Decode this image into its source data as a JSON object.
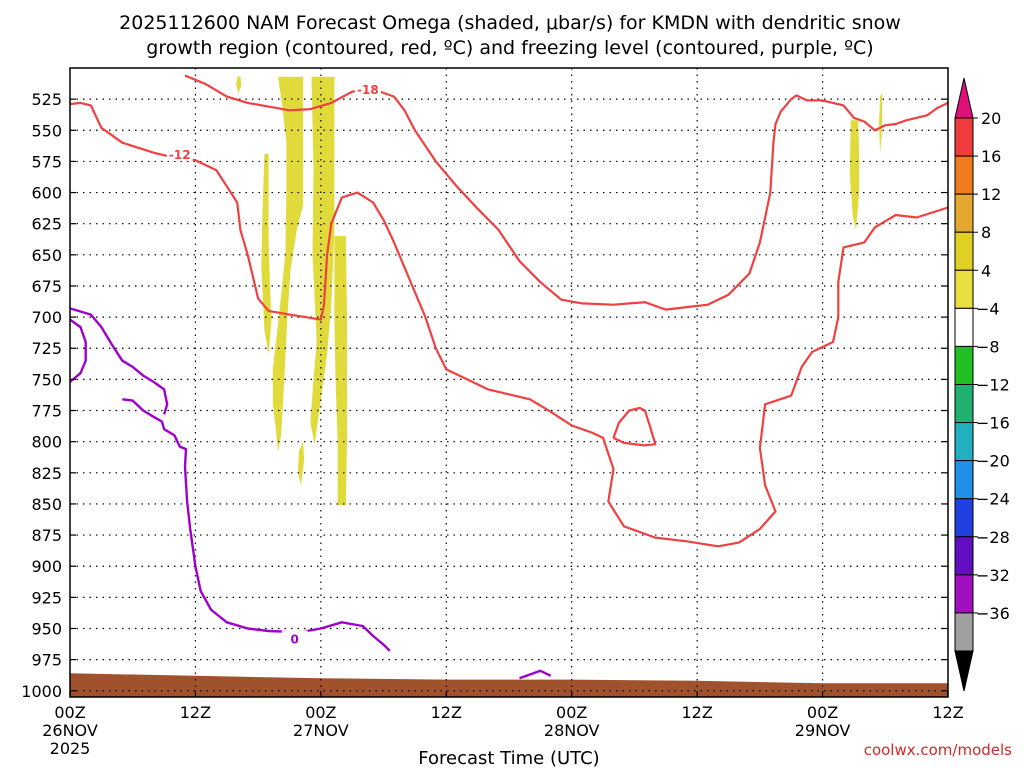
{
  "chart_data": {
    "type": "heatmap",
    "title_lines": [
      "2025112600 NAM Forecast Omega (shaded, μbar/s) for KMDN with dendritic snow",
      "growth region (contoured, red, ºC) and freezing level (contoured, purple, ºC)"
    ],
    "xlabel": "Forecast Time (UTC)",
    "credit": "coolwx.com/models",
    "x_range_hours": [
      0,
      84
    ],
    "x_ticks": [
      {
        "h": 0,
        "lines": [
          "00Z",
          "26NOV",
          "2025"
        ]
      },
      {
        "h": 12,
        "lines": [
          "12Z"
        ]
      },
      {
        "h": 24,
        "lines": [
          "00Z",
          "27NOV"
        ]
      },
      {
        "h": 36,
        "lines": [
          "12Z"
        ]
      },
      {
        "h": 48,
        "lines": [
          "00Z",
          "28NOV"
        ]
      },
      {
        "h": 60,
        "lines": [
          "12Z"
        ]
      },
      {
        "h": 72,
        "lines": [
          "00Z",
          "29NOV"
        ]
      },
      {
        "h": 84,
        "lines": [
          "12Z"
        ]
      }
    ],
    "y_range_hpa": [
      1005,
      500
    ],
    "y_ticks": [
      525,
      550,
      575,
      600,
      625,
      650,
      675,
      700,
      725,
      750,
      775,
      800,
      825,
      850,
      875,
      900,
      925,
      950,
      975,
      1000
    ],
    "colorbar": {
      "labels": [
        "20",
        "16",
        "12",
        "8",
        "4",
        "-4",
        "-8",
        "-12",
        "-16",
        "-20",
        "-24",
        "-28",
        "-32",
        "-36"
      ],
      "colors": [
        "#f03c3c",
        "#f07a1e",
        "#e5a82e",
        "#e0d024",
        "#e8e040",
        "#ffffff",
        "#22c022",
        "#20b070",
        "#20b0c0",
        "#2090e8",
        "#2040e0",
        "#6010c0",
        "#a010c0",
        "#a0a0a0"
      ],
      "top_color": "#e0107a",
      "bottom_color": "#000000"
    },
    "shading_color": "#e0da3a",
    "ground_color": "#a0522d",
    "omega_areas": [
      {
        "name": "omega-area-a",
        "pts": [
          [
            16.0,
            507
          ],
          [
            16.3,
            507
          ],
          [
            16.4,
            514
          ],
          [
            16.1,
            520
          ],
          [
            15.9,
            513
          ]
        ]
      },
      {
        "name": "omega-area-b",
        "pts": [
          [
            19.9,
            507
          ],
          [
            22.3,
            507
          ],
          [
            22.3,
            610
          ],
          [
            21.7,
            630
          ],
          [
            21.1,
            662
          ],
          [
            20.8,
            700
          ],
          [
            20.5,
            750
          ],
          [
            20.2,
            795
          ],
          [
            19.9,
            808
          ],
          [
            19.7,
            790
          ],
          [
            19.4,
            770
          ],
          [
            19.4,
            742
          ],
          [
            20.1,
            690
          ],
          [
            20.6,
            650
          ],
          [
            20.7,
            600
          ],
          [
            20.7,
            560
          ],
          [
            20.3,
            530
          ]
        ]
      },
      {
        "name": "omega-area-c",
        "pts": [
          [
            18.6,
            569
          ],
          [
            19.0,
            569
          ],
          [
            19.0,
            640
          ],
          [
            19.2,
            690
          ],
          [
            19.3,
            700
          ],
          [
            19.0,
            730
          ],
          [
            18.6,
            710
          ],
          [
            18.3,
            660
          ],
          [
            18.4,
            620
          ]
        ]
      },
      {
        "name": "omega-area-d",
        "pts": [
          [
            23.1,
            507
          ],
          [
            25.3,
            507
          ],
          [
            25.3,
            630
          ],
          [
            25.0,
            690
          ],
          [
            24.6,
            730
          ],
          [
            24.1,
            760
          ],
          [
            23.6,
            790
          ],
          [
            23.4,
            802
          ],
          [
            23.0,
            785
          ],
          [
            23.3,
            750
          ],
          [
            23.6,
            720
          ],
          [
            23.2,
            650
          ],
          [
            23.3,
            580
          ]
        ]
      },
      {
        "name": "omega-area-e",
        "pts": [
          [
            25.3,
            635
          ],
          [
            26.4,
            635
          ],
          [
            26.5,
            700
          ],
          [
            26.5,
            800
          ],
          [
            26.4,
            851
          ],
          [
            25.6,
            851
          ],
          [
            25.6,
            800
          ],
          [
            25.4,
            750
          ],
          [
            25.3,
            700
          ]
        ]
      },
      {
        "name": "omega-area-f",
        "pts": [
          [
            21.9,
            808
          ],
          [
            22.3,
            800
          ],
          [
            22.4,
            815
          ],
          [
            22.1,
            835
          ],
          [
            21.8,
            825
          ]
        ]
      },
      {
        "name": "omega-area-g",
        "pts": [
          [
            74.7,
            542
          ],
          [
            75.4,
            542
          ],
          [
            75.5,
            570
          ],
          [
            75.5,
            600
          ],
          [
            75.2,
            630
          ],
          [
            74.9,
            620
          ],
          [
            74.6,
            585
          ]
        ]
      },
      {
        "name": "omega-area-h",
        "pts": [
          [
            77.5,
            523
          ],
          [
            77.7,
            520
          ],
          [
            77.7,
            550
          ],
          [
            77.5,
            568
          ],
          [
            77.4,
            545
          ]
        ]
      }
    ],
    "ground_profile": [
      [
        0,
        986
      ],
      [
        12,
        988
      ],
      [
        24,
        990
      ],
      [
        36,
        991
      ],
      [
        48,
        991
      ],
      [
        60,
        992
      ],
      [
        72,
        994
      ],
      [
        84,
        994
      ]
    ],
    "isotherms": [
      {
        "name": "isotherm-minus12-upper",
        "color": "#f04040",
        "label": "-12",
        "label_pos": [
          10.5,
          569
        ],
        "pts": [
          [
            0,
            529
          ],
          [
            1,
            528
          ],
          [
            2,
            530
          ],
          [
            3,
            548
          ],
          [
            5,
            560
          ],
          [
            8,
            568
          ],
          [
            10,
            572
          ],
          [
            12,
            574
          ],
          [
            14,
            582
          ],
          [
            15,
            595
          ],
          [
            16,
            608
          ],
          [
            16.3,
            630
          ],
          [
            17,
            650
          ],
          [
            18,
            685
          ],
          [
            19,
            695
          ],
          [
            21,
            698
          ],
          [
            24,
            702
          ],
          [
            24.3,
            690
          ],
          [
            24.6,
            650
          ],
          [
            25,
            625
          ],
          [
            26,
            604
          ],
          [
            27.5,
            600
          ],
          [
            29,
            608
          ],
          [
            30,
            622
          ],
          [
            31,
            640
          ],
          [
            32,
            660
          ],
          [
            33,
            680
          ],
          [
            34,
            700
          ],
          [
            35,
            725
          ],
          [
            36,
            742
          ],
          [
            40,
            758
          ],
          [
            44,
            766
          ],
          [
            46,
            776
          ],
          [
            48,
            787
          ],
          [
            50,
            793
          ],
          [
            51,
            797
          ],
          [
            52,
            822
          ],
          [
            51.5,
            848
          ],
          [
            53,
            868
          ],
          [
            56,
            877
          ],
          [
            59,
            880
          ],
          [
            62,
            884
          ],
          [
            64,
            881
          ],
          [
            66,
            870
          ],
          [
            67.5,
            856
          ],
          [
            66.5,
            835
          ],
          [
            66,
            805
          ],
          [
            66.5,
            770
          ],
          [
            69,
            763
          ],
          [
            70,
            740
          ],
          [
            71,
            728
          ],
          [
            73,
            720
          ],
          [
            73.5,
            700
          ],
          [
            73.5,
            672
          ],
          [
            74,
            644
          ],
          [
            76,
            640
          ],
          [
            77,
            628
          ],
          [
            79,
            618
          ],
          [
            81,
            620
          ],
          [
            84,
            612
          ]
        ]
      },
      {
        "name": "isotherm-minus18",
        "color": "#f04040",
        "label": "-18",
        "label_pos": [
          28.5,
          517
        ],
        "pts": [
          [
            11,
            506
          ],
          [
            13,
            513
          ],
          [
            15,
            523
          ],
          [
            17,
            528
          ],
          [
            19,
            531
          ],
          [
            21,
            534
          ],
          [
            23,
            533
          ],
          [
            25,
            528
          ],
          [
            27,
            519
          ],
          [
            29,
            517
          ],
          [
            31,
            523
          ],
          [
            32,
            534
          ],
          [
            33,
            550
          ],
          [
            35,
            575
          ],
          [
            37,
            595
          ],
          [
            39,
            613
          ],
          [
            41,
            630
          ],
          [
            43,
            655
          ],
          [
            45,
            672
          ],
          [
            47,
            686
          ],
          [
            49,
            689
          ],
          [
            52,
            690
          ],
          [
            55,
            688
          ],
          [
            57,
            694
          ],
          [
            59,
            692
          ],
          [
            61,
            690
          ],
          [
            63,
            682
          ],
          [
            65,
            665
          ],
          [
            66,
            640
          ],
          [
            67,
            600
          ],
          [
            67.3,
            560
          ],
          [
            67.5,
            545
          ],
          [
            68,
            535
          ],
          [
            69,
            525
          ],
          [
            69.5,
            522
          ],
          [
            70.5,
            526
          ],
          [
            72,
            526
          ],
          [
            74,
            530
          ],
          [
            75,
            540
          ],
          [
            76,
            543
          ],
          [
            77,
            550
          ],
          [
            78,
            546
          ],
          [
            79,
            545
          ],
          [
            80,
            542
          ],
          [
            82,
            538
          ],
          [
            83,
            532
          ],
          [
            84,
            528
          ]
        ]
      },
      {
        "name": "isotherm-minus12-loop",
        "color": "#f04040",
        "label": "",
        "label_pos": [
          0,
          0
        ],
        "pts": [
          [
            52,
            797
          ],
          [
            53,
            801
          ],
          [
            55,
            803
          ],
          [
            56,
            802
          ],
          [
            55.5,
            788
          ],
          [
            55,
            775
          ],
          [
            54.5,
            773
          ],
          [
            53.5,
            775
          ],
          [
            52.5,
            785
          ],
          [
            52,
            797
          ]
        ]
      }
    ],
    "freezing_lines": [
      {
        "name": "freezing-line-main",
        "color": "#a000cc",
        "label": "0",
        "label_pos": [
          21.5,
          958
        ],
        "pts": [
          [
            5,
            766
          ],
          [
            6,
            767
          ],
          [
            7,
            775
          ],
          [
            8,
            780
          ],
          [
            8.8,
            784
          ],
          [
            9,
            790
          ],
          [
            10,
            795
          ],
          [
            10.5,
            804
          ],
          [
            11.1,
            806
          ],
          [
            11,
            820
          ],
          [
            11.2,
            848
          ],
          [
            11.5,
            870
          ],
          [
            12,
            900
          ],
          [
            12.5,
            920
          ],
          [
            13.5,
            935
          ],
          [
            15,
            945
          ],
          [
            17,
            950
          ],
          [
            19,
            952
          ],
          [
            22,
            953
          ],
          [
            24,
            950
          ],
          [
            26,
            945
          ],
          [
            28,
            948
          ],
          [
            29,
            956
          ],
          [
            30,
            963
          ],
          [
            30.6,
            968
          ]
        ]
      },
      {
        "name": "freezing-line-left",
        "color": "#a000cc",
        "label": "",
        "label_pos": [
          0,
          0
        ],
        "pts": [
          [
            0,
            693
          ],
          [
            2,
            698
          ],
          [
            3,
            708
          ],
          [
            4,
            722
          ],
          [
            5,
            735
          ],
          [
            6,
            740
          ],
          [
            7,
            747
          ],
          [
            8,
            752
          ],
          [
            9,
            758
          ],
          [
            9.3,
            770
          ],
          [
            9,
            778
          ]
        ]
      },
      {
        "name": "freezing-line-edge",
        "color": "#a000cc",
        "label": "",
        "label_pos": [
          0,
          0
        ],
        "pts": [
          [
            0,
            702
          ],
          [
            1,
            708
          ],
          [
            1.5,
            720
          ],
          [
            1.5,
            735
          ],
          [
            1,
            745
          ],
          [
            0,
            752
          ]
        ]
      },
      {
        "name": "freezing-line-bump",
        "color": "#a000cc",
        "label": "",
        "label_pos": [
          0,
          0
        ],
        "pts": [
          [
            43,
            990
          ],
          [
            45,
            984
          ],
          [
            46,
            988
          ]
        ]
      }
    ]
  }
}
